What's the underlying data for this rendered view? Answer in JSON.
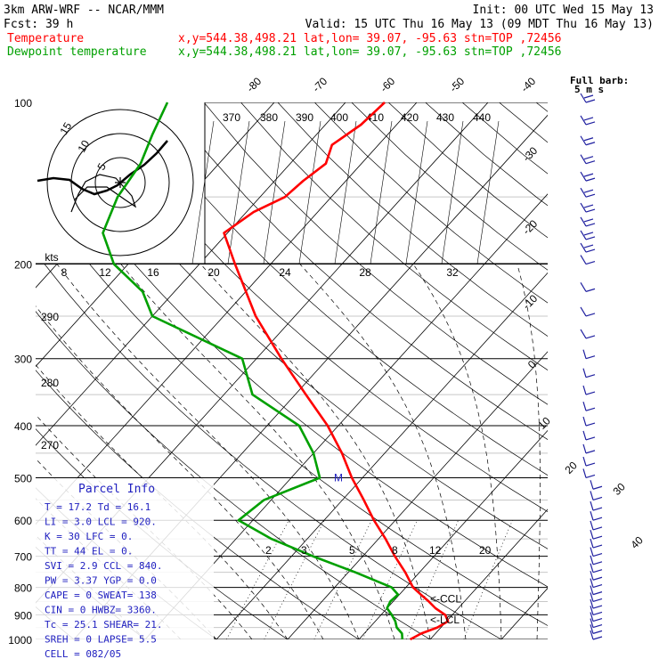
{
  "header": {
    "model": "3km ARW-WRF -- NCAR/MMM",
    "init": "Init: 00 UTC Wed 15 May 13",
    "fcst": "Fcst:   39 h",
    "valid": "Valid: 15 UTC Thu 16 May 13 (09 MDT Thu 16 May 13)",
    "temp_label": "Temperature",
    "temp_info": "x,y=544.38,498.21   lat,lon= 39.07, -95.63   stn=TOP ,72456",
    "dew_label": "Dewpoint temperature",
    "dew_info": "x,y=544.38,498.21   lat,lon= 39.07, -95.63   stn=TOP ,72456",
    "barb_legend_1": "Full barb:",
    "barb_legend_2": "5 m s",
    "temp_color": "#ff0000",
    "dew_color": "#00a000",
    "wind_color": "#2020a0"
  },
  "chart_data": {
    "type": "line",
    "xlabel": "",
    "ylabel": "",
    "pressure_labels": [
      {
        "p": 100,
        "label": "100"
      },
      {
        "p": 200,
        "label": "200"
      },
      {
        "p": 300,
        "label": "300"
      },
      {
        "p": 400,
        "label": "400"
      },
      {
        "p": 500,
        "label": "500"
      },
      {
        "p": 600,
        "label": "600"
      },
      {
        "p": 700,
        "label": "700"
      },
      {
        "p": 800,
        "label": "800"
      },
      {
        "p": 900,
        "label": "900"
      },
      {
        "p": 1000,
        "label": "1000"
      }
    ],
    "isotherm_labels": [
      "-80",
      "-70",
      "-60",
      "-50",
      "-40",
      "-30",
      "-20",
      "-10",
      "0",
      "10",
      "20",
      "30",
      "40"
    ],
    "theta_e_labels": [
      "290",
      "280",
      "270"
    ],
    "mixing_ratio_labels": [
      "2",
      "3",
      "5",
      "8",
      "12",
      "20"
    ],
    "inset_theta_labels": [
      "370",
      "380",
      "390",
      "400",
      "410",
      "420",
      "430",
      "440"
    ],
    "inset_speed_labels": [
      "kts",
      "8",
      "12",
      "16",
      "20",
      "24",
      "28",
      "32"
    ],
    "hodograph_rings": [
      "5",
      "10",
      "15"
    ],
    "series": [
      {
        "name": "Temperature",
        "color": "#ff0000",
        "points": [
          [
            1000,
            17.2
          ],
          [
            975,
            18.0
          ],
          [
            950,
            19.5
          ],
          [
            925,
            20.2
          ],
          [
            900,
            19.0
          ],
          [
            875,
            16.8
          ],
          [
            850,
            15.0
          ],
          [
            825,
            13.0
          ],
          [
            800,
            11.0
          ],
          [
            750,
            8.0
          ],
          [
            700,
            4.5
          ],
          [
            650,
            1.0
          ],
          [
            600,
            -3.0
          ],
          [
            550,
            -7.0
          ],
          [
            500,
            -11.5
          ],
          [
            450,
            -16.0
          ],
          [
            400,
            -21.5
          ],
          [
            350,
            -28.5
          ],
          [
            300,
            -36.5
          ],
          [
            250,
            -45.5
          ],
          [
            200,
            -55.0
          ],
          [
            175,
            -60.5
          ],
          [
            160,
            -59.0
          ],
          [
            150,
            -56.5
          ],
          [
            140,
            -56.0
          ],
          [
            130,
            -55.0
          ],
          [
            120,
            -56.5
          ],
          [
            110,
            -55.0
          ],
          [
            100,
            -54.5
          ]
        ]
      },
      {
        "name": "Dewpoint temperature",
        "color": "#00a000",
        "points": [
          [
            1000,
            16.1
          ],
          [
            975,
            15.3
          ],
          [
            950,
            13.8
          ],
          [
            925,
            12.8
          ],
          [
            900,
            11.5
          ],
          [
            875,
            10.0
          ],
          [
            850,
            9.6
          ],
          [
            825,
            9.8
          ],
          [
            800,
            8.0
          ],
          [
            750,
            1.0
          ],
          [
            700,
            -7.0
          ],
          [
            650,
            -15.0
          ],
          [
            600,
            -22.0
          ],
          [
            550,
            -21.0
          ],
          [
            500,
            -16.0
          ],
          [
            450,
            -20.0
          ],
          [
            400,
            -25.5
          ],
          [
            350,
            -36.0
          ],
          [
            300,
            -42.0
          ],
          [
            250,
            -60.0
          ],
          [
            225,
            -64.5
          ],
          [
            200,
            -72.0
          ],
          [
            175,
            -77.5
          ],
          [
            150,
            -80.0
          ],
          [
            130,
            -81.0
          ],
          [
            115,
            -83.0
          ],
          [
            100,
            -85.0
          ]
        ]
      }
    ],
    "wind_barbs_pressures": [
      1000,
      975,
      950,
      925,
      900,
      875,
      850,
      825,
      800,
      775,
      750,
      725,
      700,
      675,
      650,
      625,
      600,
      575,
      550,
      525,
      500,
      475,
      450,
      425,
      400,
      375,
      350,
      325,
      300,
      275,
      250,
      225,
      200,
      190,
      180,
      170,
      160,
      150,
      140,
      130,
      120,
      110,
      100
    ],
    "markers": [
      {
        "text": "M",
        "p": 500
      },
      {
        "text": "<-CCL",
        "p": 840
      },
      {
        "text": "<-LCL",
        "p": 920
      }
    ]
  },
  "parcel_info": {
    "title": "Parcel Info",
    "rows": [
      "T  =   17.2  Td =  16.1",
      "LI =    3.0  LCL =  920.",
      "K  =     30  LFC =    0.",
      "TT =     44  EL  =    0.",
      "SVI =   2.9  CCL =  840.",
      "PW =   3.37  YGP =  0.0",
      "CAPE =    0  SWEAT=  138",
      "CIN =     0  HWBZ= 3360.",
      "Tc =   25.1  SHEAR=  21.",
      "SREH =    0  LAPSE=  5.5",
      "CELL = 082/05"
    ]
  }
}
